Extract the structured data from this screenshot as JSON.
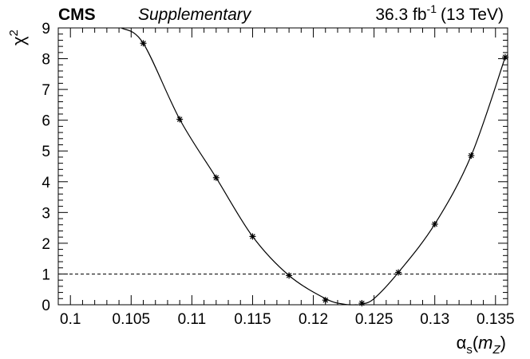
{
  "header": {
    "experiment": "CMS",
    "status": "Supplementary",
    "lumi_value": "36.3 fb",
    "lumi_exponent": "-1",
    "energy": "(13 TeV)"
  },
  "chart_data": {
    "type": "scatter",
    "title": "",
    "xlabel": {
      "symbol": "α",
      "subscript": "s",
      "open_paren": "(",
      "variable": "m",
      "variable_subscript": "Z",
      "close_paren": ")"
    },
    "ylabel": {
      "symbol": "χ",
      "superscript": "2"
    },
    "xlim": [
      0.099,
      0.136
    ],
    "ylim": [
      0,
      9
    ],
    "x_ticks": [
      0.1,
      0.105,
      0.11,
      0.115,
      0.12,
      0.125,
      0.13,
      0.135
    ],
    "x_tick_labels": [
      "0.1",
      "0.105",
      "0.11",
      "0.115",
      "0.12",
      "0.125",
      "0.13",
      "0.135"
    ],
    "y_ticks": [
      0,
      1,
      2,
      3,
      4,
      5,
      6,
      7,
      8,
      9
    ],
    "y_tick_labels": [
      "0",
      "1",
      "2",
      "3",
      "4",
      "5",
      "6",
      "7",
      "8",
      "9"
    ],
    "grid": false,
    "reference_line": {
      "y": 1,
      "style": "dashed"
    },
    "points": {
      "marker": "star",
      "x": [
        0.106,
        0.109,
        0.112,
        0.115,
        0.118,
        0.121,
        0.124,
        0.127,
        0.13,
        0.133,
        0.1358
      ],
      "y": [
        8.5,
        6.03,
        4.13,
        2.22,
        0.95,
        0.15,
        0.05,
        1.05,
        2.62,
        4.85,
        8.05
      ]
    },
    "fit_curve": {
      "x": [
        0.1042,
        0.106,
        0.109,
        0.112,
        0.115,
        0.118,
        0.121,
        0.1225,
        0.1235,
        0.124,
        0.125,
        0.127,
        0.13,
        0.133,
        0.1358
      ],
      "y": [
        9.0,
        8.5,
        6.03,
        4.13,
        2.22,
        0.95,
        0.2,
        0.02,
        0.0,
        0.02,
        0.2,
        1.05,
        2.62,
        4.85,
        8.05
      ]
    },
    "colors": {
      "axis": "#000000",
      "marker": "#000000",
      "curve": "#000000",
      "reference_line": "#000000"
    }
  }
}
